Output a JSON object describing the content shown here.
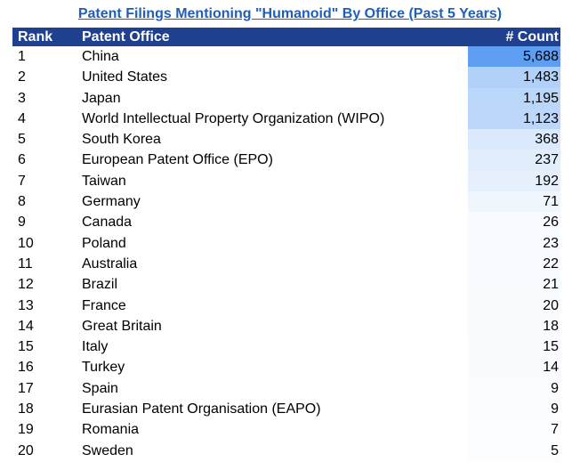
{
  "title": "Patent Filings Mentioning \"Humanoid\" By Office (Past 5 Years)",
  "columns": {
    "rank": "Rank",
    "office": "Patent Office",
    "count": "# Count"
  },
  "colors": {
    "header_bg": "#1f3f8f",
    "title": "#1f5fb8",
    "heat_max": "#5d9ef2",
    "heat_min": "#ffffff"
  },
  "rows": [
    {
      "rank": "1",
      "office": "China",
      "count": "5,688",
      "value": 5688
    },
    {
      "rank": "2",
      "office": "United States",
      "count": "1,483",
      "value": 1483
    },
    {
      "rank": "3",
      "office": "Japan",
      "count": "1,195",
      "value": 1195
    },
    {
      "rank": "4",
      "office": "World Intellectual Property Organization (WIPO)",
      "count": "1,123",
      "value": 1123
    },
    {
      "rank": "5",
      "office": "South Korea",
      "count": "368",
      "value": 368
    },
    {
      "rank": "6",
      "office": "European Patent Office (EPO)",
      "count": "237",
      "value": 237
    },
    {
      "rank": "7",
      "office": "Taiwan",
      "count": "192",
      "value": 192
    },
    {
      "rank": "8",
      "office": "Germany",
      "count": "71",
      "value": 71
    },
    {
      "rank": "9",
      "office": "Canada",
      "count": "26",
      "value": 26
    },
    {
      "rank": "10",
      "office": "Poland",
      "count": "23",
      "value": 23
    },
    {
      "rank": "11",
      "office": "Australia",
      "count": "22",
      "value": 22
    },
    {
      "rank": "12",
      "office": "Brazil",
      "count": "21",
      "value": 21
    },
    {
      "rank": "13",
      "office": "France",
      "count": "20",
      "value": 20
    },
    {
      "rank": "14",
      "office": "Great Britain",
      "count": "18",
      "value": 18
    },
    {
      "rank": "15",
      "office": "Italy",
      "count": "15",
      "value": 15
    },
    {
      "rank": "16",
      "office": "Turkey",
      "count": "14",
      "value": 14
    },
    {
      "rank": "17",
      "office": "Spain",
      "count": "9",
      "value": 9
    },
    {
      "rank": "18",
      "office": "Eurasian Patent Organisation (EAPO)",
      "count": "9",
      "value": 9
    },
    {
      "rank": "19",
      "office": "Romania",
      "count": "7",
      "value": 7
    },
    {
      "rank": "20",
      "office": "Sweden",
      "count": "5",
      "value": 5
    }
  ]
}
